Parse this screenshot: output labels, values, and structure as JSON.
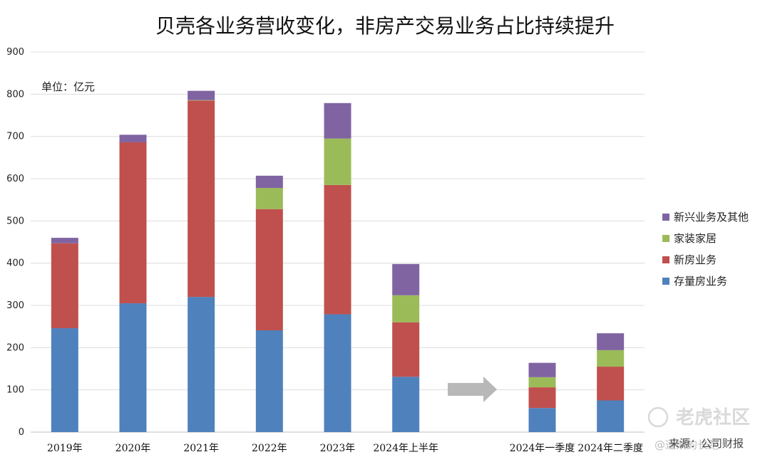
{
  "chart_data": {
    "type": "bar",
    "stacked": true,
    "title": "贝壳各业务营收变化，非房产交易业务占比持续提升",
    "unit_label": "单位：亿元",
    "categories": [
      "2019年",
      "2020年",
      "2021年",
      "2022年",
      "2023年",
      "2024年上半年",
      "",
      "2024年一季度",
      "2024年二季度"
    ],
    "series": [
      {
        "name": "存量房业务",
        "color": "#4f81bd",
        "values": [
          246,
          305,
          320,
          241,
          279,
          131,
          null,
          57,
          75
        ]
      },
      {
        "name": "新房业务",
        "color": "#c0504d",
        "values": [
          201,
          381,
          465,
          287,
          306,
          129,
          null,
          49,
          80
        ]
      },
      {
        "name": "家装家居",
        "color": "#9bbb59",
        "values": [
          0,
          0,
          1,
          50,
          110,
          64,
          null,
          24,
          39
        ]
      },
      {
        "name": "新兴业务及其他",
        "color": "#8064a2",
        "values": [
          13,
          18,
          22,
          29,
          84,
          74,
          null,
          34,
          40
        ]
      }
    ],
    "legend_order": [
      "新兴业务及其他",
      "家装家居",
      "新房业务",
      "存量房业务"
    ],
    "legend_position": "right",
    "ylim": [
      0,
      900
    ],
    "yticks": [
      0,
      100,
      200,
      300,
      400,
      500,
      600,
      700,
      800,
      900
    ],
    "grid": true,
    "annotation": "arrow between 2024年上半年 and 2024年一季度"
  },
  "watermark": {
    "brand": "老虎社区",
    "source": "来源：公司财报",
    "overlay": "@逐斯的长跑"
  }
}
